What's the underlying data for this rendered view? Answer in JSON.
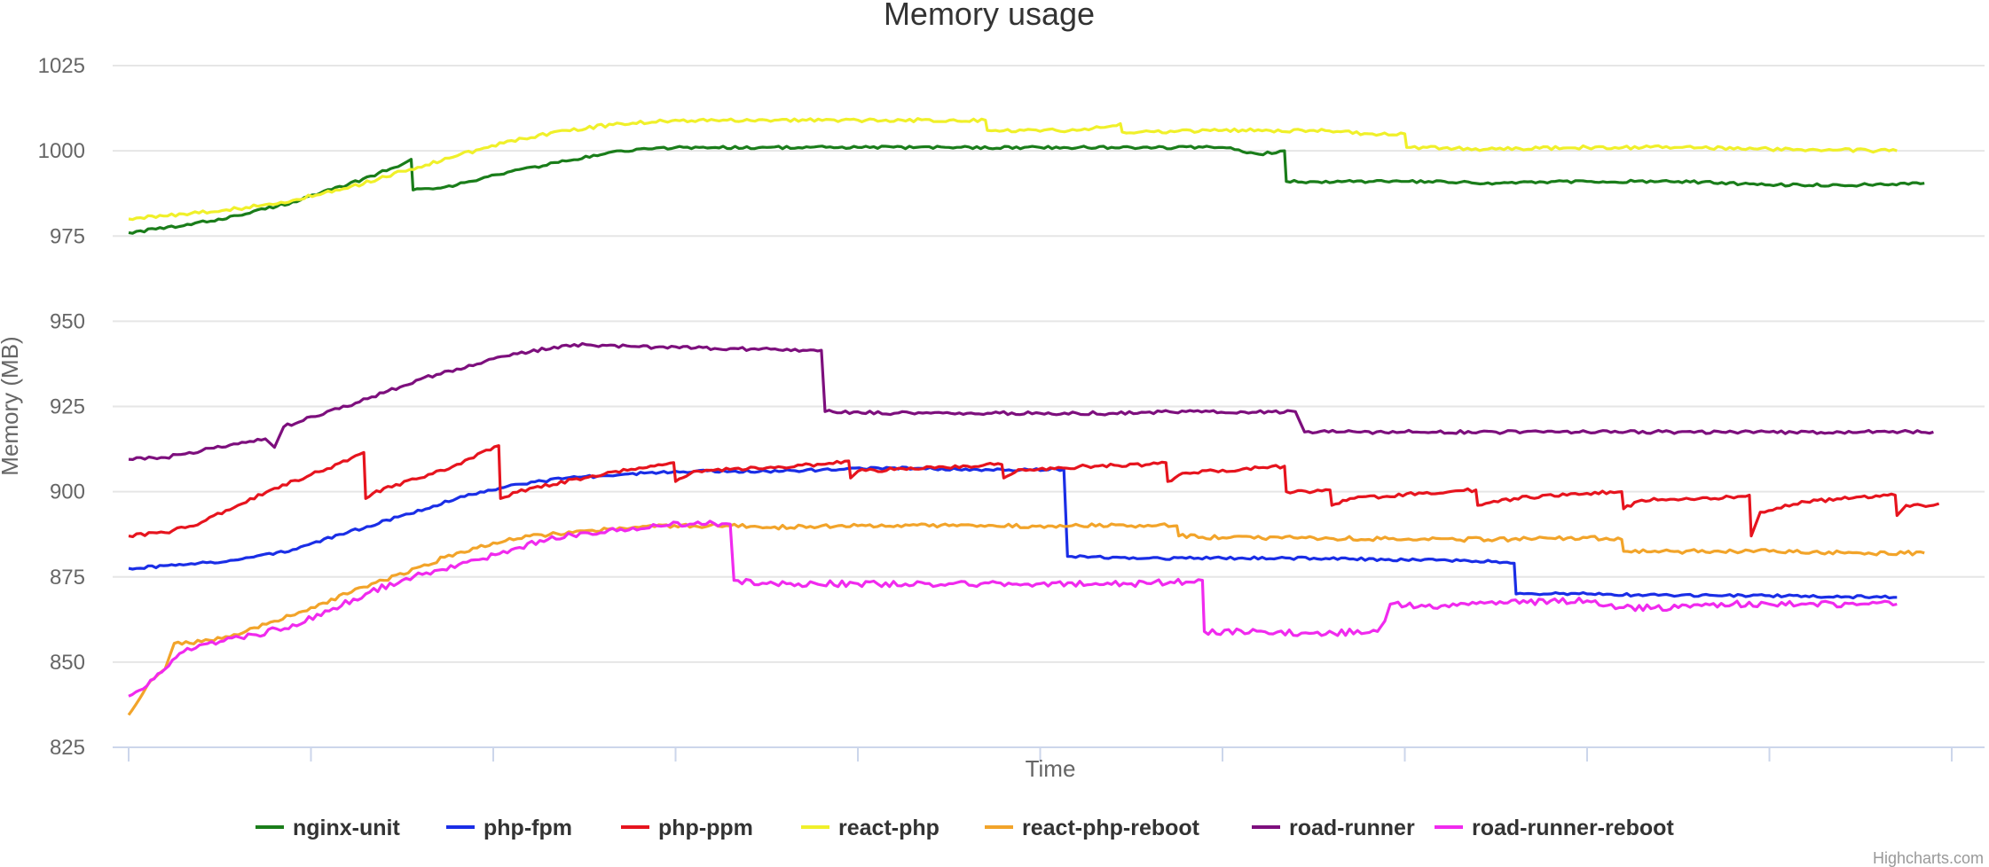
{
  "chart_data": {
    "type": "line",
    "title": "Memory usage",
    "xlabel": "Time",
    "ylabel": "Memory (MB)",
    "ylim": [
      825,
      1025
    ],
    "y_ticks": [
      825,
      850,
      875,
      900,
      925,
      950,
      975,
      1000,
      1025
    ],
    "x_range": [
      0,
      100
    ],
    "x_tick_count": 10,
    "grid": true,
    "legend_position": "bottom-center",
    "credits": "Highcharts.com",
    "series": [
      {
        "name": "nginx-unit",
        "color": "#1a7d1a",
        "points": [
          [
            0,
            976
          ],
          [
            3,
            978
          ],
          [
            6,
            981
          ],
          [
            9,
            985
          ],
          [
            12,
            990
          ],
          [
            15,
            996
          ],
          [
            15.5,
            997.5
          ],
          [
            15.6,
            988.5
          ],
          [
            18,
            990
          ],
          [
            21,
            994
          ],
          [
            24,
            997
          ],
          [
            27,
            1000
          ],
          [
            30,
            1001
          ],
          [
            35,
            1001
          ],
          [
            40,
            1001
          ],
          [
            45,
            1001
          ],
          [
            50,
            1001
          ],
          [
            55,
            1001
          ],
          [
            60,
            1001
          ],
          [
            62,
            999
          ],
          [
            63.4,
            1000
          ],
          [
            63.5,
            991
          ],
          [
            70,
            991
          ],
          [
            75,
            990.5
          ],
          [
            80,
            991
          ],
          [
            85,
            991
          ],
          [
            90,
            990
          ],
          [
            95,
            990
          ],
          [
            98.5,
            990.5
          ]
        ],
        "noise": 0.4
      },
      {
        "name": "php-fpm",
        "color": "#1a2ee6",
        "points": [
          [
            0,
            877.5
          ],
          [
            3,
            878.5
          ],
          [
            6,
            880
          ],
          [
            9,
            883
          ],
          [
            12,
            888
          ],
          [
            15,
            893
          ],
          [
            18,
            898
          ],
          [
            21,
            902
          ],
          [
            24,
            904
          ],
          [
            27,
            905
          ],
          [
            30,
            906
          ],
          [
            35,
            906
          ],
          [
            39,
            906.5
          ],
          [
            42,
            907
          ],
          [
            47,
            906.5
          ],
          [
            51.3,
            906.5
          ],
          [
            51.5,
            881
          ],
          [
            56,
            880.5
          ],
          [
            60,
            880.5
          ],
          [
            65,
            880.5
          ],
          [
            70,
            880
          ],
          [
            75,
            879.5
          ],
          [
            76,
            879
          ],
          [
            76.1,
            870
          ],
          [
            80,
            870
          ],
          [
            85,
            869.5
          ],
          [
            90,
            869.5
          ],
          [
            97,
            869
          ]
        ],
        "noise": 0.4
      },
      {
        "name": "php-ppm",
        "color": "#e6141e",
        "points": [
          [
            0,
            887
          ],
          [
            2,
            888
          ],
          [
            4,
            891
          ],
          [
            6,
            896
          ],
          [
            8,
            901
          ],
          [
            10,
            905
          ],
          [
            12,
            909
          ],
          [
            12.9,
            911.5
          ],
          [
            13,
            898
          ],
          [
            14,
            901
          ],
          [
            16,
            904
          ],
          [
            18,
            908
          ],
          [
            20.3,
            913.5
          ],
          [
            20.4,
            898
          ],
          [
            22,
            901
          ],
          [
            25,
            904
          ],
          [
            28,
            907
          ],
          [
            29.9,
            908.5
          ],
          [
            30,
            903
          ],
          [
            31,
            906
          ],
          [
            35,
            907
          ],
          [
            38,
            908
          ],
          [
            39.5,
            909
          ],
          [
            39.6,
            904
          ],
          [
            40,
            906
          ],
          [
            46,
            907.5
          ],
          [
            47.9,
            908
          ],
          [
            48,
            904
          ],
          [
            49,
            906.5
          ],
          [
            53,
            907.5
          ],
          [
            56,
            908
          ],
          [
            56.9,
            908.5
          ],
          [
            57,
            903
          ],
          [
            58,
            905.5
          ],
          [
            62,
            907
          ],
          [
            63.4,
            907.5
          ],
          [
            63.5,
            900
          ],
          [
            65,
            900
          ],
          [
            65.9,
            900.5
          ],
          [
            66,
            896
          ],
          [
            67,
            898
          ],
          [
            71,
            899.5
          ],
          [
            73.9,
            900.5
          ],
          [
            74,
            896
          ],
          [
            76,
            898
          ],
          [
            80,
            899.5
          ],
          [
            81.9,
            900
          ],
          [
            82,
            895
          ],
          [
            83,
            897.5
          ],
          [
            87,
            898
          ],
          [
            88.9,
            899
          ],
          [
            89,
            887
          ],
          [
            89.5,
            894
          ],
          [
            92,
            897
          ],
          [
            95,
            898.5
          ],
          [
            96.9,
            899
          ],
          [
            97,
            893
          ],
          [
            97.5,
            896
          ],
          [
            99,
            896
          ],
          [
            99.3,
            896.5
          ]
        ],
        "noise": 0.5
      },
      {
        "name": "react-php",
        "color": "#f0f02a",
        "points": [
          [
            0,
            980
          ],
          [
            3,
            981.5
          ],
          [
            6,
            983
          ],
          [
            9,
            985.5
          ],
          [
            12,
            989
          ],
          [
            15,
            994
          ],
          [
            18,
            998.5
          ],
          [
            21,
            1003
          ],
          [
            24,
            1006
          ],
          [
            27,
            1008
          ],
          [
            30,
            1009
          ],
          [
            35,
            1009
          ],
          [
            40,
            1009
          ],
          [
            47,
            1009
          ],
          [
            47.1,
            1006
          ],
          [
            52,
            1006
          ],
          [
            54.4,
            1008
          ],
          [
            54.5,
            1005.5
          ],
          [
            60,
            1006
          ],
          [
            65,
            1006
          ],
          [
            68,
            1005
          ],
          [
            70,
            1005
          ],
          [
            70.1,
            1001
          ],
          [
            75,
            1000.5
          ],
          [
            80,
            1001
          ],
          [
            85,
            1001
          ],
          [
            90,
            1000.5
          ],
          [
            97,
            1000
          ]
        ],
        "noise": 0.5
      },
      {
        "name": "react-php-reboot",
        "color": "#f2a42a",
        "points": [
          [
            0,
            834.5
          ],
          [
            1,
            843
          ],
          [
            2,
            848
          ],
          [
            2.5,
            855.5
          ],
          [
            4,
            856
          ],
          [
            6,
            858
          ],
          [
            8,
            862
          ],
          [
            10,
            866
          ],
          [
            12,
            870
          ],
          [
            14,
            874
          ],
          [
            16,
            878
          ],
          [
            18,
            882
          ],
          [
            20,
            885
          ],
          [
            22,
            887
          ],
          [
            25,
            888.5
          ],
          [
            28,
            889.5
          ],
          [
            31,
            890
          ],
          [
            33,
            890
          ],
          [
            35,
            889.5
          ],
          [
            40,
            890
          ],
          [
            45,
            890
          ],
          [
            50,
            890
          ],
          [
            55,
            890
          ],
          [
            57.5,
            890
          ],
          [
            57.6,
            887
          ],
          [
            60,
            886.5
          ],
          [
            65,
            886.5
          ],
          [
            70,
            886
          ],
          [
            75,
            886
          ],
          [
            80,
            886.5
          ],
          [
            81.9,
            886
          ],
          [
            82,
            882.5
          ],
          [
            85,
            882.5
          ],
          [
            90,
            882.5
          ],
          [
            95,
            882
          ],
          [
            98.5,
            882
          ]
        ],
        "noise": 0.6
      },
      {
        "name": "road-runner",
        "color": "#7d0f7d",
        "points": [
          [
            0,
            909.5
          ],
          [
            2,
            910
          ],
          [
            4,
            912
          ],
          [
            6,
            914
          ],
          [
            7.5,
            915.5
          ],
          [
            8,
            913
          ],
          [
            8.5,
            919
          ],
          [
            10,
            922
          ],
          [
            12,
            925
          ],
          [
            14,
            929
          ],
          [
            16,
            933
          ],
          [
            18,
            936
          ],
          [
            20,
            939
          ],
          [
            22,
            941
          ],
          [
            24,
            943
          ],
          [
            26,
            943
          ],
          [
            28,
            942.5
          ],
          [
            30,
            942.5
          ],
          [
            33,
            942
          ],
          [
            37,
            941.5
          ],
          [
            38,
            941.5
          ],
          [
            38.2,
            923.5
          ],
          [
            42,
            923
          ],
          [
            46,
            923
          ],
          [
            50,
            923
          ],
          [
            54,
            923
          ],
          [
            58,
            923.5
          ],
          [
            61,
            923.5
          ],
          [
            64,
            923.5
          ],
          [
            64.5,
            917.5
          ],
          [
            70,
            917.5
          ],
          [
            75,
            917.5
          ],
          [
            80,
            917.5
          ],
          [
            85,
            917.5
          ],
          [
            90,
            917.5
          ],
          [
            95,
            917.5
          ],
          [
            99,
            917.5
          ]
        ],
        "noise": 0.5
      },
      {
        "name": "road-runner-reboot",
        "color": "#f02aee",
        "points": [
          [
            0,
            840
          ],
          [
            1,
            843
          ],
          [
            2,
            848
          ],
          [
            3,
            853
          ],
          [
            5,
            856
          ],
          [
            7,
            858
          ],
          [
            9,
            861
          ],
          [
            11,
            865
          ],
          [
            13,
            870
          ],
          [
            15,
            874
          ],
          [
            17,
            877
          ],
          [
            19,
            880
          ],
          [
            21,
            883
          ],
          [
            23,
            886
          ],
          [
            25,
            888
          ],
          [
            27,
            889
          ],
          [
            29,
            890
          ],
          [
            31,
            890.5
          ],
          [
            33,
            890.5
          ],
          [
            33.2,
            874
          ],
          [
            35,
            873
          ],
          [
            40,
            873
          ],
          [
            45,
            873
          ],
          [
            50,
            873
          ],
          [
            55,
            873
          ],
          [
            58,
            873.5
          ],
          [
            58.9,
            874
          ],
          [
            59,
            859
          ],
          [
            65,
            858.5
          ],
          [
            68.5,
            859
          ],
          [
            68.9,
            862
          ],
          [
            69.2,
            867
          ],
          [
            72,
            866.5
          ],
          [
            75,
            867
          ],
          [
            78,
            868
          ],
          [
            80,
            868
          ],
          [
            82,
            866
          ],
          [
            85,
            866
          ],
          [
            88,
            867
          ],
          [
            90,
            867
          ],
          [
            92,
            867
          ],
          [
            95,
            867
          ],
          [
            97,
            867
          ]
        ],
        "noise": 0.9
      }
    ]
  }
}
